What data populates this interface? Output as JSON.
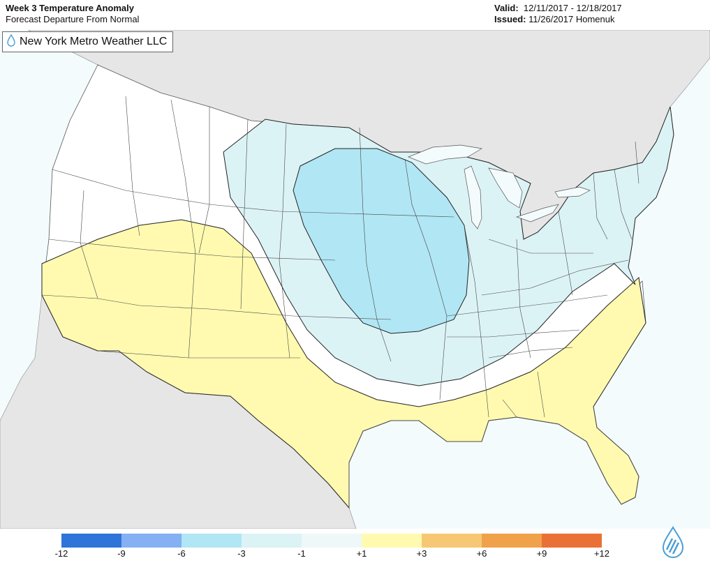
{
  "header": {
    "title": "Week 3 Temperature Anomaly",
    "subtitle": "Forecast Departure From Normal",
    "valid_label": "Valid:",
    "valid_value": "12/11/2017 - 12/18/2017",
    "issued_label": "Issued:",
    "issued_value": "11/26/2017 Homenuk"
  },
  "brand": {
    "name": "New York Metro Weather LLC",
    "icon": "water-drop-icon"
  },
  "legend": {
    "colors": [
      "#2f74d8",
      "#85b0f3",
      "#b1e6f4",
      "#dcf3f6",
      "#eef8f8",
      "#fffab0",
      "#f6c873",
      "#f0a24b",
      "#ea7135"
    ],
    "labels": [
      "-12",
      "-9",
      "-6",
      "-3",
      "-1",
      "+1",
      "+3",
      "+6",
      "+9",
      "+12"
    ]
  },
  "map_colors": {
    "land_outside": "#e6e6e6",
    "water": "#f4fbfd",
    "neutral": "#ffffff",
    "warm_1_3": "#fffab0",
    "cool_1_3": "#dcf3f6",
    "cool_3_6": "#b1e6f4"
  }
}
